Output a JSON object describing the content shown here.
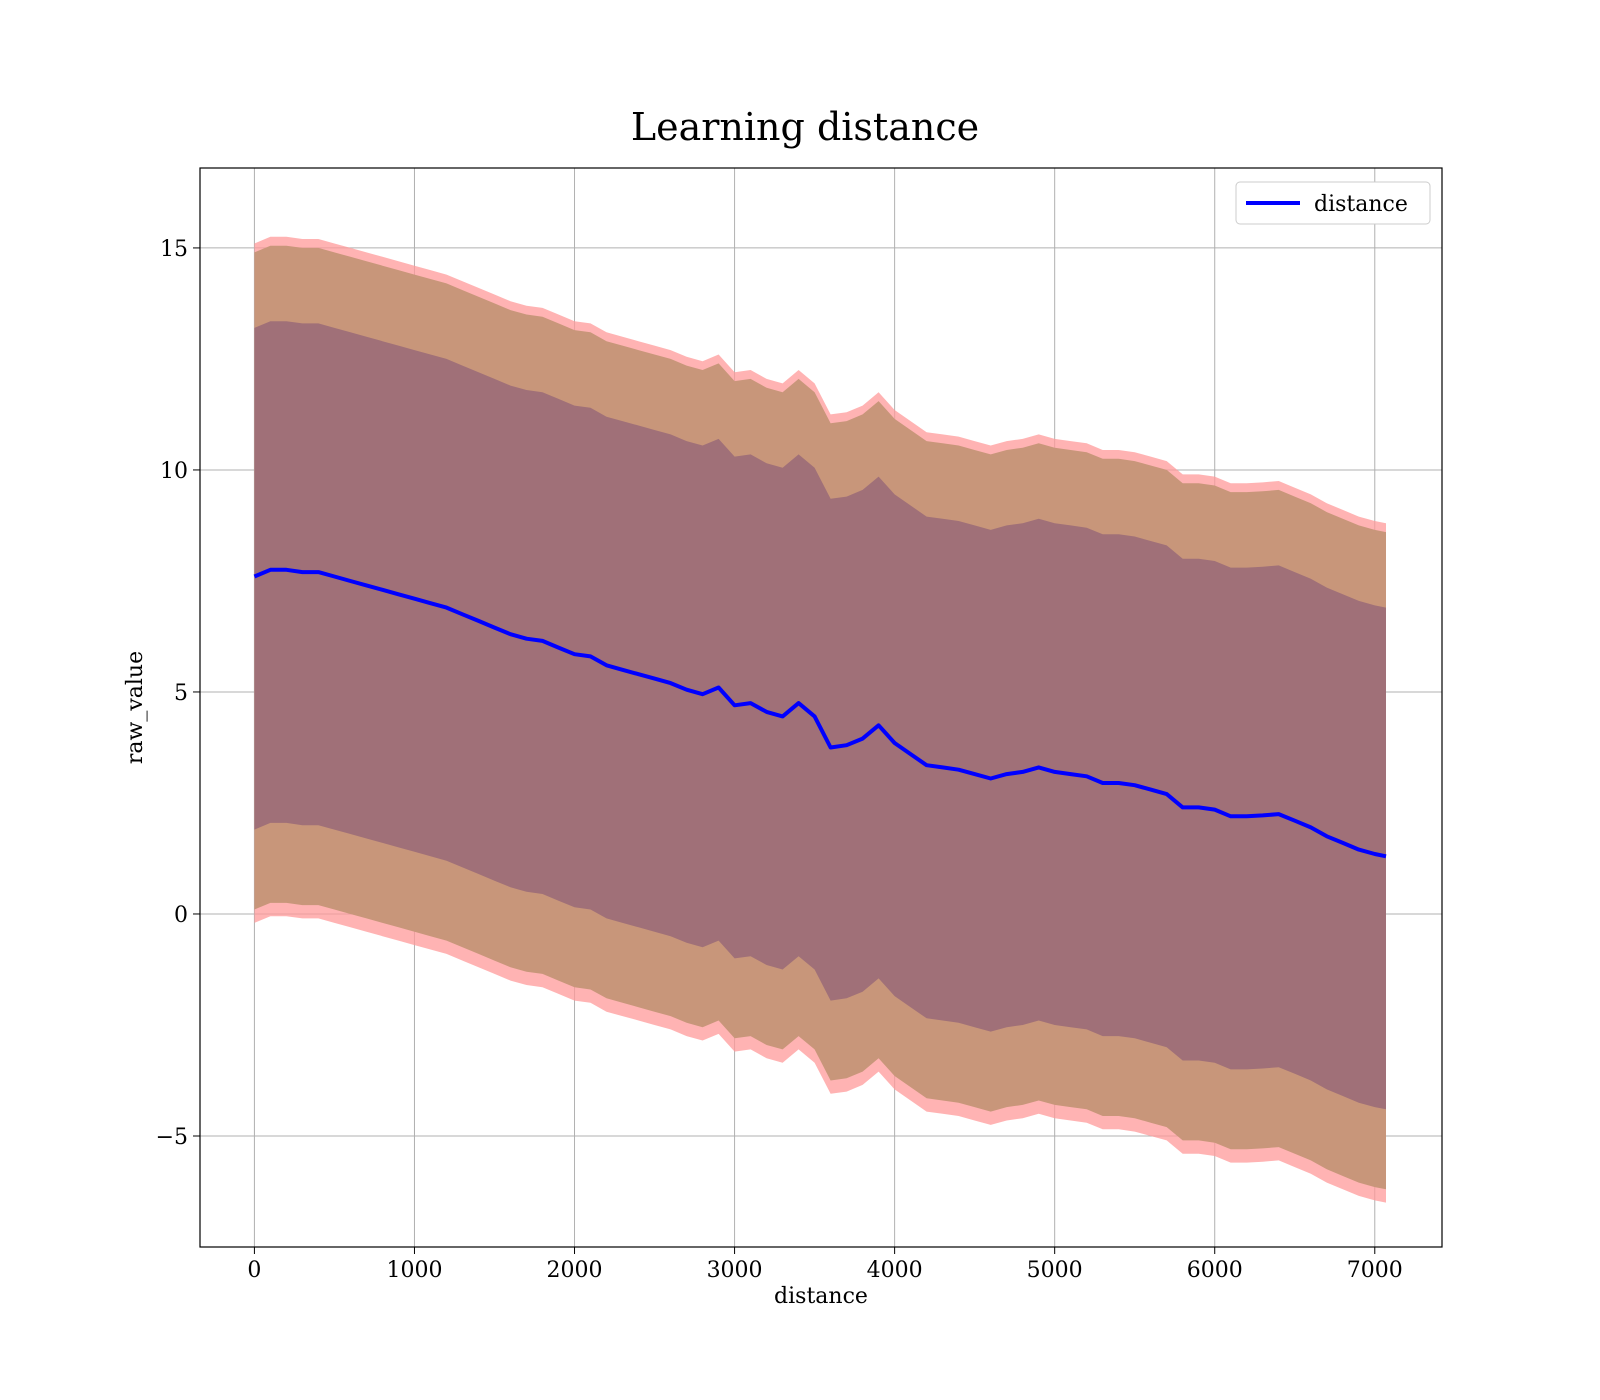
{
  "chart_data": {
    "type": "line",
    "title": "Learning distance",
    "xlabel": "distance",
    "ylabel": "raw_value",
    "xlim": [
      -340,
      7420
    ],
    "ylim": [
      -7.5,
      16.8
    ],
    "xticks": [
      0,
      1000,
      2000,
      3000,
      4000,
      5000,
      6000,
      7000
    ],
    "xtick_labels": [
      "0",
      "1000",
      "2000",
      "3000",
      "4000",
      "5000",
      "6000",
      "7000"
    ],
    "yticks": [
      -5,
      0,
      5,
      10,
      15
    ],
    "ytick_labels": [
      "−5",
      "0",
      "5",
      "10",
      "15"
    ],
    "grid": true,
    "legend": {
      "placement": "top-right",
      "entries": [
        "distance"
      ]
    },
    "colors": {
      "line": "#0000ff",
      "band_outer": "#ff9999",
      "band_middle": "#c8967a",
      "band_inner": "#a07078",
      "grid": "#b0b0b0"
    },
    "x": [
      0,
      100,
      200,
      300,
      400,
      500,
      600,
      700,
      800,
      900,
      1000,
      1100,
      1200,
      1300,
      1400,
      1500,
      1600,
      1700,
      1800,
      1900,
      2000,
      2100,
      2200,
      2300,
      2400,
      2500,
      2600,
      2700,
      2800,
      2900,
      3000,
      3100,
      3200,
      3300,
      3400,
      3500,
      3600,
      3700,
      3800,
      3900,
      4000,
      4100,
      4200,
      4300,
      4400,
      4500,
      4600,
      4700,
      4800,
      4900,
      5000,
      5100,
      5200,
      5300,
      5400,
      5500,
      5600,
      5700,
      5800,
      5900,
      6000,
      6100,
      6200,
      6300,
      6400,
      6500,
      6600,
      6700,
      6800,
      6900,
      7000,
      7070
    ],
    "series": [
      {
        "name": "distance",
        "values": [
          7.6,
          7.75,
          7.75,
          7.7,
          7.7,
          7.6,
          7.5,
          7.4,
          7.3,
          7.2,
          7.1,
          7.0,
          6.9,
          6.75,
          6.6,
          6.45,
          6.3,
          6.2,
          6.15,
          6.0,
          5.85,
          5.8,
          5.6,
          5.5,
          5.4,
          5.3,
          5.2,
          5.05,
          4.95,
          5.1,
          4.7,
          4.75,
          4.55,
          4.45,
          4.75,
          4.45,
          3.75,
          3.8,
          3.95,
          4.25,
          3.85,
          3.6,
          3.35,
          3.3,
          3.25,
          3.15,
          3.05,
          3.15,
          3.2,
          3.3,
          3.2,
          3.15,
          3.1,
          2.95,
          2.95,
          2.9,
          2.8,
          2.7,
          2.4,
          2.4,
          2.35,
          2.2,
          2.2,
          2.22,
          2.25,
          2.1,
          1.95,
          1.75,
          1.6,
          1.45,
          1.35,
          1.3
        ]
      }
    ],
    "bands": [
      {
        "kind": "outer",
        "upper_offset": 7.5,
        "lower_offset": -7.8
      },
      {
        "kind": "middle",
        "upper_offset": 7.3,
        "lower_offset": -7.5
      },
      {
        "kind": "inner",
        "upper_offset": 5.6,
        "lower_offset": -5.7
      }
    ]
  }
}
